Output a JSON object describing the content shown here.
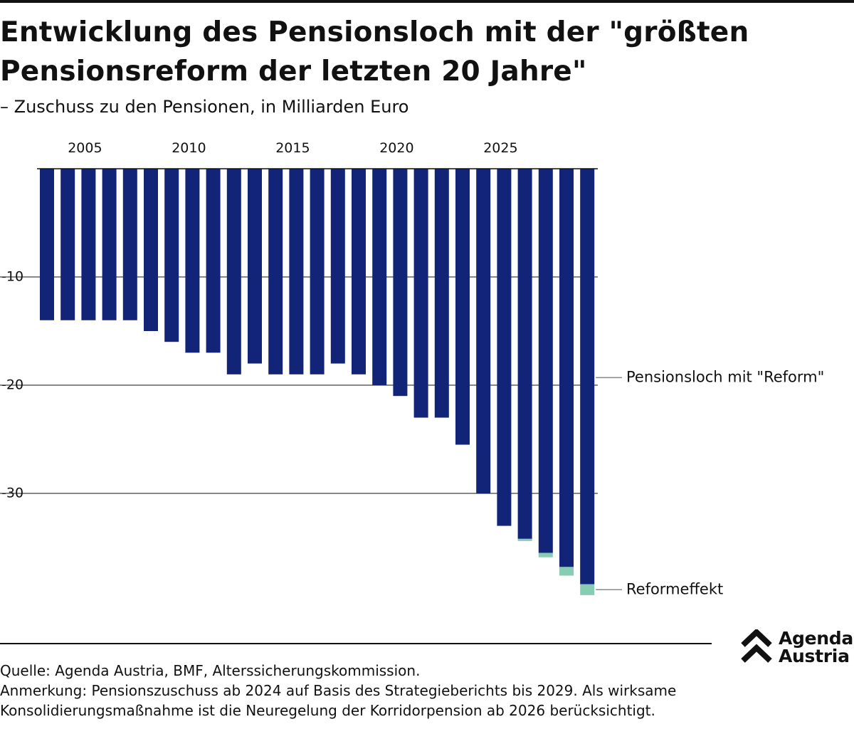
{
  "header": {
    "title": "Entwicklung des Pensionsloch mit der \"größten Pensionsreform der letzten 20 Jahre\"",
    "subtitle": "– Zuschuss zu den Pensionen, in Milliarden Euro"
  },
  "colors": {
    "base": "#112478",
    "reform": "#86cdb3",
    "grid": "#111111",
    "annotation_line": "#888888"
  },
  "chart_data": {
    "type": "bar",
    "orientation": "vertical-negative",
    "stacked": true,
    "x": [
      2003,
      2004,
      2005,
      2006,
      2007,
      2008,
      2009,
      2010,
      2011,
      2012,
      2013,
      2014,
      2015,
      2016,
      2017,
      2018,
      2019,
      2020,
      2021,
      2022,
      2023,
      2024,
      2025,
      2026,
      2027,
      2028,
      2029
    ],
    "x_tick_labels": [
      "2005",
      "2010",
      "2015",
      "2020",
      "2025"
    ],
    "x_tick_years": [
      2005,
      2010,
      2015,
      2020,
      2025
    ],
    "series": [
      {
        "name": "Pensionsloch mit \"Reform\"",
        "values": [
          -14,
          -14,
          -14,
          -14,
          -14,
          -15,
          -16,
          -17,
          -17,
          -19,
          -18,
          -19,
          -19,
          -19,
          -18,
          -19,
          -20,
          -21,
          -23,
          -23,
          -25.5,
          -30,
          -33,
          -34.2,
          -35.5,
          -36.8,
          -38.4
        ]
      },
      {
        "name": "Reformeffekt",
        "values": [
          0,
          0,
          0,
          0,
          0,
          0,
          0,
          0,
          0,
          0,
          0,
          0,
          0,
          0,
          0,
          0,
          0,
          0,
          0,
          0,
          0,
          0,
          0,
          -0.2,
          -0.4,
          -0.8,
          -1.0
        ]
      }
    ],
    "ylim": [
      -40,
      0
    ],
    "y_ticks": [
      -10,
      -20,
      -30
    ],
    "y_tick_labels": [
      "-10",
      "-20",
      "-30"
    ],
    "annotations": [
      {
        "text": "Pensionsloch mit \"Reform\"",
        "series": 0,
        "at_value": -19.3
      },
      {
        "text": "Reformeffekt",
        "series": 1,
        "at_value": -38.9
      }
    ],
    "legend": "inline-right"
  },
  "footer": {
    "source": "Quelle: Agenda Austria, BMF, Alterssicherungskommission.",
    "note": "Anmerkung: Pensionszuschuss ab 2024 auf Basis des Strategieberichts bis 2029. Als wirksame Konsolidierungsmaßnahme ist die Neuregelung der Korridorpension ab 2026 berücksichtigt."
  },
  "logo": {
    "line1": "Agenda",
    "line2": "Austria"
  }
}
